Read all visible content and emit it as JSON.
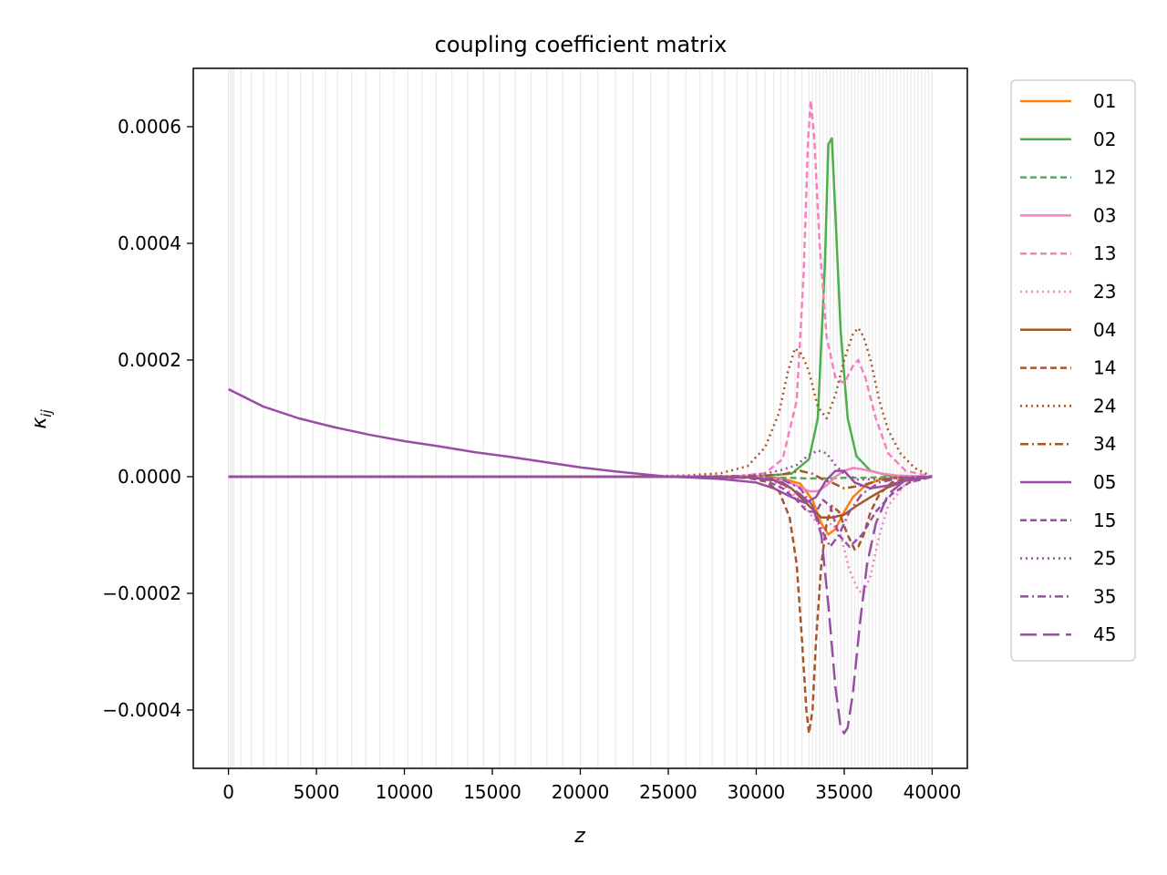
{
  "chart_data": {
    "type": "line",
    "title": "coupling coefficient matrix",
    "xlabel": "z",
    "ylabel": "κ",
    "ylabel_sub": "ij",
    "xlim": [
      -2000,
      42000
    ],
    "ylim": [
      -0.0005,
      0.0007
    ],
    "xticks": [
      0,
      5000,
      10000,
      15000,
      20000,
      25000,
      30000,
      35000,
      40000
    ],
    "xtick_labels": [
      "0",
      "5000",
      "10000",
      "15000",
      "20000",
      "25000",
      "30000",
      "35000",
      "40000"
    ],
    "yticks": [
      -0.0004,
      -0.0002,
      0.0,
      0.0002,
      0.0004,
      0.0006
    ],
    "ytick_labels": [
      "−0.0004",
      "−0.0002",
      "0.0000",
      "0.0002",
      "0.0004",
      "0.0006"
    ],
    "vlines": [
      0,
      100,
      200,
      300,
      700,
      1300,
      2000,
      2700,
      3400,
      4100,
      4800,
      5500,
      6200,
      7000,
      7800,
      8600,
      9400,
      10200,
      11000,
      11800,
      12700,
      13600,
      14500,
      15400,
      16300,
      17200,
      18100,
      19000,
      20000,
      21000,
      22000,
      23000,
      24000,
      25000,
      26000,
      26800,
      27500,
      28200,
      28900,
      29500,
      30000,
      30500,
      31000,
      31400,
      31800,
      32200,
      32600,
      33000,
      33200,
      33400,
      33600,
      33800,
      34000,
      34200,
      34400,
      34600,
      34800,
      35000,
      35200,
      35400,
      35600,
      35800,
      36000,
      36200,
      36400,
      36600,
      36800,
      37000,
      37200,
      37400,
      37600,
      37800,
      38000,
      38200,
      38400,
      38600,
      38800,
      39000,
      39200,
      39400,
      39600,
      39800,
      40000
    ],
    "legend_position": "outside-right",
    "series": [
      {
        "name": "01",
        "color": "#ff7f0e",
        "dash": "solid",
        "x": [
          0,
          25000,
          30000,
          31500,
          32500,
          33200,
          33700,
          34100,
          34500,
          35000,
          35500,
          36200,
          37000,
          38000,
          40000
        ],
        "y": [
          0,
          0,
          0,
          -3e-06,
          -1.2e-05,
          -4e-05,
          -8e-05,
          -9.9e-05,
          -9e-05,
          -6e-05,
          -3.5e-05,
          -1.5e-05,
          -5e-06,
          -1e-06,
          0
        ]
      },
      {
        "name": "02",
        "color": "#4daf4a",
        "dash": "solid",
        "x": [
          0,
          25000,
          30000,
          32000,
          33000,
          33500,
          33900,
          34100,
          34300,
          34500,
          34800,
          35200,
          35700,
          36500,
          37500,
          40000
        ],
        "y": [
          0,
          0,
          5e-07,
          5e-06,
          3e-05,
          0.0001,
          0.00036,
          0.00057,
          0.00058,
          0.00045,
          0.00025,
          0.0001,
          3.5e-05,
          1e-05,
          2e-06,
          0
        ]
      },
      {
        "name": "12",
        "color": "#4daf4a",
        "dash": "dashed",
        "x": [
          0,
          25000,
          30000,
          31000,
          32000,
          33000,
          34000,
          35000,
          36000,
          37000,
          38000,
          40000
        ],
        "y": [
          0,
          0,
          -1e-06,
          -2e-06,
          -2e-06,
          -3e-06,
          -3e-06,
          -2e-06,
          -2e-06,
          -1e-06,
          0,
          0
        ]
      },
      {
        "name": "03",
        "color": "#f781bf",
        "dash": "solid",
        "x": [
          0,
          25000,
          30000,
          31500,
          32500,
          33000,
          33500,
          34000,
          34500,
          35000,
          35500,
          36000,
          37000,
          38000,
          40000
        ],
        "y": [
          0,
          0,
          0,
          -5e-06,
          -1.8e-05,
          -2.5e-05,
          -2.5e-05,
          -1.5e-05,
          0,
          1e-05,
          1.5e-05,
          1.3e-05,
          6e-06,
          2e-06,
          0
        ]
      },
      {
        "name": "13",
        "color": "#f781bf",
        "dash": "dashed",
        "x": [
          0,
          25000,
          29000,
          30500,
          31500,
          32300,
          32700,
          32950,
          33100,
          33300,
          33600,
          34000,
          34500,
          35000,
          35500,
          35800,
          36200,
          36800,
          37500,
          38500,
          40000
        ],
        "y": [
          0,
          0,
          1e-06,
          6e-06,
          3e-05,
          0.00013,
          0.00035,
          0.00058,
          0.000645,
          0.00058,
          0.0004,
          0.00024,
          0.00017,
          0.00016,
          0.00019,
          0.0002,
          0.00017,
          0.0001,
          4e-05,
          1e-05,
          0
        ]
      },
      {
        "name": "23",
        "color": "#f781bf",
        "dash": "dotted",
        "x": [
          0,
          25000,
          29000,
          30500,
          31500,
          32500,
          33200,
          33800,
          34300,
          34800,
          35300,
          35800,
          36100,
          36500,
          37000,
          37500,
          38500,
          40000
        ],
        "y": [
          0,
          0,
          -1e-06,
          -4e-06,
          -1.5e-05,
          -4e-05,
          -7e-05,
          -9e-05,
          -8e-05,
          -0.0001,
          -0.00016,
          -0.000195,
          -0.0002,
          -0.00017,
          -0.0001,
          -5e-05,
          -1.2e-05,
          0
        ]
      },
      {
        "name": "04",
        "color": "#a65628",
        "dash": "solid",
        "x": [
          0,
          25000,
          29500,
          31000,
          32000,
          33000,
          33700,
          34300,
          35000,
          35700,
          36500,
          37500,
          38500,
          40000
        ],
        "y": [
          0,
          0,
          -1e-06,
          -6e-06,
          -2e-05,
          -5e-05,
          -7e-05,
          -7e-05,
          -6.5e-05,
          -5e-05,
          -3.5e-05,
          -1.8e-05,
          -7e-06,
          0
        ]
      },
      {
        "name": "14",
        "color": "#a65628",
        "dash": "dashed",
        "x": [
          0,
          25000,
          29500,
          30500,
          31300,
          31900,
          32300,
          32600,
          32850,
          33000,
          33200,
          33400,
          33700,
          34000,
          34300,
          34700,
          35200,
          35600,
          35800,
          36100,
          36500,
          37000,
          37700,
          38500,
          40000
        ],
        "y": [
          0,
          0,
          -2e-06,
          -8e-06,
          -2.5e-05,
          -7e-05,
          -0.00015,
          -0.00028,
          -0.0004,
          -0.00044,
          -0.0004,
          -0.00028,
          -0.00015,
          -8e-05,
          -5e-05,
          -6e-05,
          -0.0001,
          -0.000125,
          -0.00012,
          -0.0001,
          -6e-05,
          -3e-05,
          -1e-05,
          -3e-06,
          0
        ]
      },
      {
        "name": "24",
        "color": "#a65628",
        "dash": "dotted",
        "x": [
          0,
          22000,
          26000,
          28000,
          29500,
          30500,
          31300,
          31800,
          32200,
          32600,
          33000,
          33500,
          34000,
          34500,
          35000,
          35500,
          35800,
          36100,
          36500,
          37000,
          37500,
          38200,
          39000,
          40000
        ],
        "y": [
          0,
          0,
          2e-06,
          6e-06,
          1.8e-05,
          5e-05,
          0.00011,
          0.00018,
          0.00022,
          0.00021,
          0.00018,
          0.00012,
          0.0001,
          0.00014,
          0.0002,
          0.000245,
          0.000255,
          0.00024,
          0.0002,
          0.00013,
          8e-05,
          4e-05,
          1.5e-05,
          0
        ]
      },
      {
        "name": "34",
        "color": "#a65628",
        "dash": "dashdot",
        "x": [
          0,
          25000,
          30000,
          31500,
          32500,
          33200,
          33800,
          34300,
          35000,
          36000,
          37000,
          38000,
          40000
        ],
        "y": [
          0,
          0,
          1e-06,
          4e-06,
          1e-05,
          5e-06,
          -5e-06,
          -1e-05,
          -2e-05,
          -1.5e-05,
          -6e-06,
          -2e-06,
          0
        ]
      },
      {
        "name": "05",
        "color": "#984ea3",
        "dash": "solid",
        "x": [
          0,
          2000,
          4000,
          6000,
          8000,
          10000,
          12000,
          14000,
          16000,
          18000,
          20000,
          22000,
          24000,
          25000,
          26000,
          28000,
          30000,
          31000,
          32000,
          32800,
          33400,
          34000,
          34500,
          35000,
          35600,
          36500,
          37500,
          38500,
          40000
        ],
        "y": [
          0.00015,
          0.00012,
          0.0001,
          8.5e-05,
          7.2e-05,
          6.1e-05,
          5.2e-05,
          4.2e-05,
          3.4e-05,
          2.5e-05,
          1.6e-05,
          9e-06,
          3e-06,
          0,
          -1e-06,
          -4e-06,
          -1e-05,
          -2e-05,
          -3.5e-05,
          -4.5e-05,
          -3.5e-05,
          -5e-06,
          1e-05,
          1e-05,
          -1e-05,
          -2e-05,
          -1.5e-05,
          -6e-06,
          0
        ]
      },
      {
        "name": "15",
        "color": "#984ea3",
        "dash": "dashed",
        "x": [
          0,
          25000,
          29500,
          30500,
          31500,
          32300,
          32900,
          33400,
          33800,
          34200,
          34700,
          35300,
          36000,
          36800,
          37700,
          38700,
          40000
        ],
        "y": [
          0,
          0,
          -2e-06,
          -6e-06,
          -2e-05,
          -4e-05,
          -6e-05,
          -6e-05,
          -4e-05,
          -5e-05,
          -0.0001,
          -0.00012,
          -0.0001,
          -6e-05,
          -3e-05,
          -1e-05,
          0
        ]
      },
      {
        "name": "25",
        "color": "#984ea3",
        "dash": "dotted",
        "x": [
          0,
          25000,
          29000,
          30500,
          31500,
          32300,
          32900,
          33500,
          34000,
          34500,
          35000,
          35800,
          36800,
          38000,
          40000
        ],
        "y": [
          0,
          0,
          1e-06,
          5e-06,
          1.2e-05,
          2e-05,
          3.5e-05,
          4.5e-05,
          4e-05,
          2e-05,
          5e-06,
          -5e-06,
          -4e-06,
          -1e-06,
          0
        ]
      },
      {
        "name": "35",
        "color": "#984ea3",
        "dash": "dashdot",
        "x": [
          0,
          25000,
          30000,
          31500,
          32500,
          33200,
          33700,
          34200,
          34700,
          35300,
          36000,
          37000,
          38000,
          40000
        ],
        "y": [
          0,
          0,
          -1e-06,
          -5e-06,
          -2e-05,
          -5e-05,
          -9e-05,
          -0.00012,
          -0.0001,
          -6e-05,
          -3e-05,
          -1e-05,
          -3e-06,
          0
        ]
      },
      {
        "name": "45",
        "color": "#984ea3",
        "dash": "longdash",
        "x": [
          0,
          25000,
          30000,
          31500,
          32500,
          33200,
          33700,
          34100,
          34500,
          34800,
          35000,
          35200,
          35500,
          35900,
          36300,
          36800,
          37500,
          38300,
          39200,
          40000
        ],
        "y": [
          0,
          0,
          -2e-06,
          -1e-05,
          -3e-05,
          -5e-05,
          -0.0001,
          -0.00022,
          -0.00036,
          -0.00043,
          -0.00044,
          -0.00043,
          -0.00037,
          -0.00025,
          -0.00015,
          -8e-05,
          -3e-05,
          -1e-05,
          -3e-06,
          0
        ]
      }
    ]
  }
}
